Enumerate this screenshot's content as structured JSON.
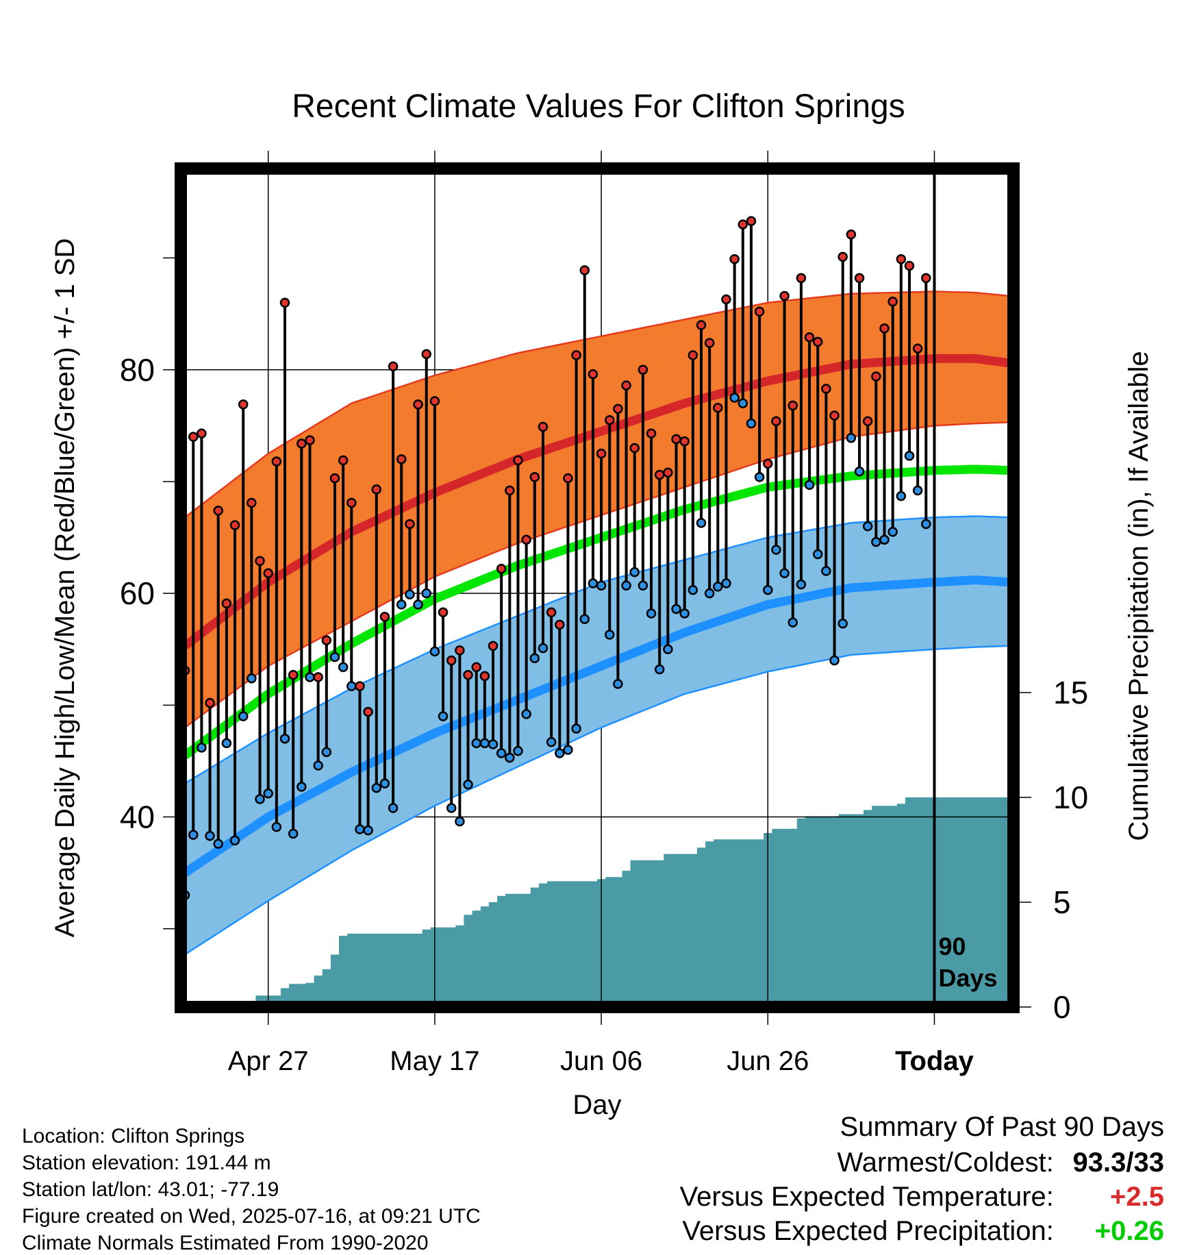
{
  "title": "Recent Climate Values For Clifton Springs",
  "colors": {
    "orange_band": "#F37B2E",
    "red_mean": "#D5272A",
    "red_edge": "#E43A1E",
    "blue_band": "#80BEE6",
    "blue_mean": "#1E90FF",
    "green_mean": "#00E600",
    "precip_fill": "#4A9BA6",
    "high_dot": "#E0342E",
    "low_dot": "#2E8FE0",
    "anomaly_temp": "#D92B2B",
    "anomaly_precip": "#00CC00"
  },
  "chart_data": {
    "type": "line",
    "title": "Recent Climate Values For Clifton Springs",
    "xlabel": "Day",
    "ylabel_left": "Average Daily High/Low/Mean (Red/Blue/Green) +/- 1 SD",
    "ylabel_right": "Cumulative Precipitation (in), If Available",
    "x_tick_labels": [
      "Apr 27",
      "May 17",
      "Jun 06",
      "Jun 26",
      "Today"
    ],
    "x_tick_days": [
      10,
      30,
      50,
      70,
      90
    ],
    "x_range_days": [
      -0.5,
      99.5
    ],
    "ylim_left": [
      23,
      98
    ],
    "yticks_left": [
      40,
      60,
      80
    ],
    "ylim_right": [
      0,
      40
    ],
    "yticks_right": [
      0,
      5,
      10,
      15
    ],
    "today_marker": {
      "day": 90,
      "label_line1": "90",
      "label_line2": "Days"
    },
    "normals": {
      "days": [
        0,
        10,
        20,
        30,
        40,
        50,
        60,
        70,
        80,
        90,
        95,
        99
      ],
      "high_mean": [
        55.3,
        61.0,
        65.5,
        69.0,
        72.0,
        74.5,
        77.0,
        79.0,
        80.5,
        81.0,
        81.0,
        80.6
      ],
      "high_upper": [
        66.8,
        72.5,
        77.0,
        79.5,
        81.5,
        83.0,
        84.5,
        86.0,
        86.8,
        87.0,
        86.9,
        86.6
      ],
      "high_lower": [
        48.0,
        53.5,
        57.5,
        61.5,
        64.5,
        67.0,
        69.5,
        72.0,
        74.0,
        75.0,
        75.2,
        75.3
      ],
      "mean_mean": [
        45.5,
        51.0,
        55.5,
        59.5,
        62.5,
        65.0,
        67.5,
        69.5,
        70.5,
        71.0,
        71.1,
        71.0
      ],
      "low_mean": [
        35.0,
        40.0,
        44.0,
        47.5,
        50.5,
        53.5,
        56.5,
        59.0,
        60.5,
        61.0,
        61.2,
        61.0
      ],
      "low_upper": [
        43.0,
        47.5,
        51.5,
        55.0,
        58.0,
        61.0,
        63.0,
        65.0,
        66.3,
        66.8,
        66.9,
        66.8
      ],
      "low_lower": [
        27.7,
        32.5,
        37.0,
        41.0,
        44.5,
        48.0,
        51.0,
        53.0,
        54.5,
        55.0,
        55.2,
        55.3
      ]
    },
    "highs": [
      53.1,
      74.0,
      74.3,
      50.2,
      67.4,
      59.1,
      66.1,
      76.9,
      68.1,
      62.9,
      61.8,
      71.8,
      86.0,
      52.7,
      73.4,
      73.7,
      52.5,
      55.8,
      70.3,
      71.9,
      68.1,
      51.7,
      49.4,
      69.3,
      57.9,
      80.3,
      72.0,
      66.2,
      76.9,
      81.4,
      77.2,
      58.3,
      54.0,
      54.9,
      52.7,
      53.4,
      52.6,
      55.3,
      62.2,
      69.2,
      71.9,
      64.8,
      70.4,
      74.9,
      58.3,
      57.2,
      70.3,
      81.3,
      88.9,
      79.6,
      72.5,
      75.5,
      76.5,
      78.6,
      73.0,
      80.0,
      74.3,
      70.6,
      70.8,
      73.8,
      73.6,
      81.3,
      84.0,
      82.4,
      76.6,
      86.3,
      89.9,
      93.0,
      93.3,
      85.2,
      71.6,
      75.4,
      86.6,
      76.8,
      88.2,
      82.9,
      82.5,
      78.3,
      75.9,
      90.1,
      92.1,
      88.2,
      75.4,
      79.4,
      83.7,
      86.1,
      89.9,
      89.3,
      81.9,
      88.2
    ],
    "lows": [
      33.0,
      38.4,
      46.2,
      38.3,
      37.6,
      46.6,
      37.9,
      49.0,
      52.4,
      41.6,
      42.1,
      39.1,
      47.0,
      38.5,
      42.7,
      52.5,
      44.6,
      45.8,
      54.3,
      53.4,
      51.7,
      38.9,
      38.8,
      42.6,
      43.0,
      40.8,
      59.0,
      59.9,
      59.0,
      60.0,
      54.8,
      49.0,
      40.8,
      39.6,
      42.9,
      46.6,
      46.6,
      46.5,
      45.7,
      45.3,
      45.9,
      49.2,
      54.2,
      55.1,
      46.7,
      45.7,
      46.0,
      47.9,
      57.7,
      60.9,
      60.7,
      56.3,
      51.9,
      60.7,
      61.9,
      60.7,
      58.2,
      53.2,
      55.0,
      58.6,
      58.2,
      60.3,
      66.3,
      60.0,
      60.6,
      60.9,
      77.5,
      77.0,
      75.2,
      70.4,
      60.3,
      63.9,
      61.8,
      57.4,
      60.8,
      69.7,
      63.5,
      62.0,
      54.0,
      57.3,
      73.9,
      70.9,
      66.0,
      64.6,
      64.8,
      65.5,
      68.7,
      72.3,
      69.2,
      66.2
    ],
    "cumulative_precip": [
      0,
      0,
      0,
      0,
      0.05,
      0.08,
      0.08,
      0.08,
      0.1,
      0.55,
      0.55,
      0.55,
      0.9,
      1.1,
      1.1,
      1.15,
      1.5,
      1.8,
      2.5,
      3.4,
      3.5,
      3.5,
      3.5,
      3.5,
      3.5,
      3.5,
      3.5,
      3.5,
      3.5,
      3.7,
      3.8,
      3.8,
      3.8,
      3.9,
      4.4,
      4.6,
      4.8,
      5.0,
      5.3,
      5.4,
      5.4,
      5.4,
      5.7,
      5.9,
      6.0,
      6.0,
      6.0,
      6.0,
      6.0,
      6.0,
      6.1,
      6.2,
      6.2,
      6.5,
      7.0,
      7.0,
      7.0,
      7.0,
      7.3,
      7.3,
      7.3,
      7.3,
      7.6,
      7.9,
      8.0,
      8.0,
      8.0,
      8.0,
      8.0,
      8.0,
      8.3,
      8.5,
      8.5,
      8.5,
      9.0,
      9.1,
      9.1,
      9.1,
      9.1,
      9.2,
      9.2,
      9.2,
      9.4,
      9.6,
      9.6,
      9.6,
      9.7,
      10.0,
      10.0,
      10.0,
      10.0,
      10.0,
      10.0,
      10.0,
      10.0,
      10.0,
      10.0,
      10.0,
      10.0,
      10.0
    ]
  },
  "meta": {
    "location": "Location: Clifton Springs",
    "elevation": "Station elevation: 191.44 m",
    "latlon": "Station lat/lon: 43.01; -77.19",
    "created": "Figure created on Wed, 2025-07-16, at 09:21 UTC",
    "normals": "Climate Normals Estimated From 1990-2020"
  },
  "summary": {
    "heading": "Summary Of Past 90 Days",
    "warm_cold_label": "Warmest/Coldest:",
    "warm_cold_value": "93.3/33",
    "temp_label": "Versus Expected Temperature:",
    "temp_value": "+2.5",
    "precip_label": "Versus Expected Precipitation:",
    "precip_value": "+0.26"
  }
}
